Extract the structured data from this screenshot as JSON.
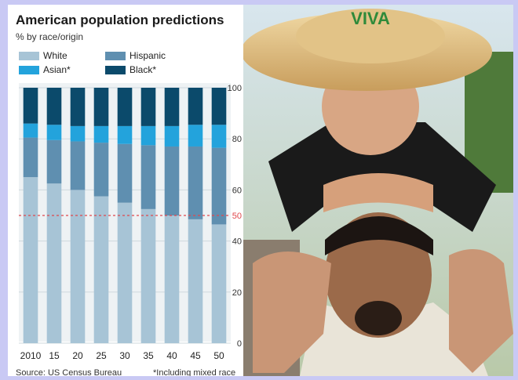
{
  "chart_data": {
    "type": "bar",
    "stacked": true,
    "title": "American population predictions",
    "subtitle": "% by race/origin",
    "categories": [
      "2010",
      "15",
      "20",
      "25",
      "30",
      "35",
      "40",
      "45",
      "50"
    ],
    "series": [
      {
        "name": "White",
        "color": "#a7c4d6",
        "values": [
          65,
          62.5,
          60,
          57.5,
          55,
          52.5,
          50,
          48.5,
          46.5
        ]
      },
      {
        "name": "Hispanic",
        "color": "#5f8fb0",
        "values": [
          15.5,
          17,
          19,
          21,
          23,
          25,
          27,
          28.5,
          30
        ]
      },
      {
        "name": "Asian*",
        "color": "#23a3dc",
        "values": [
          5.5,
          6,
          6,
          6.5,
          7,
          7.5,
          8,
          8.5,
          9
        ]
      },
      {
        "name": "Black*",
        "color": "#0b4a6b",
        "values": [
          14,
          14.5,
          15,
          15,
          15,
          15,
          15,
          14.5,
          14.5
        ]
      }
    ],
    "ylim": [
      0,
      100
    ],
    "yticks": [
      "0",
      "20",
      "40",
      "50",
      "60",
      "80",
      "100"
    ],
    "reference_line": {
      "value": 50,
      "color": "#e0474c"
    },
    "grid": true,
    "legend_position": "top"
  },
  "footer": {
    "source": "Source: US Census Bureau",
    "note": "*Including mixed race"
  },
  "photo": {
    "hat_lettering": "VIVA"
  }
}
